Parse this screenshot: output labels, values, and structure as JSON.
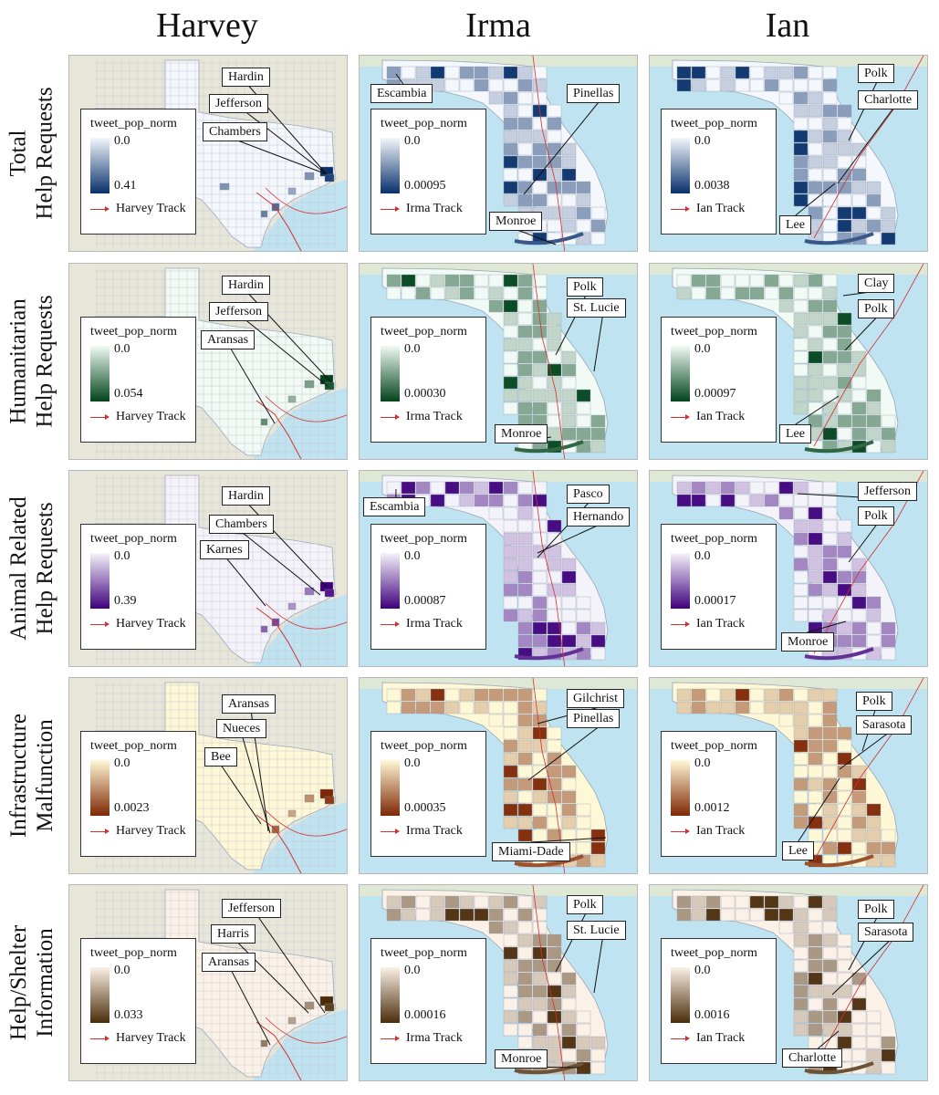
{
  "columns": [
    "Harvey",
    "Irma",
    "Ian"
  ],
  "rows": [
    {
      "line1": "Total",
      "line2": "Help Requests",
      "ramp": [
        "#f4f7fc",
        "#08306b"
      ]
    },
    {
      "line1": "Humanitarian",
      "line2": "Help Requests",
      "ramp": [
        "#f1faf4",
        "#00441b"
      ]
    },
    {
      "line1": "Animal Related",
      "line2": "Help Requests",
      "ramp": [
        "#f5f3fa",
        "#3f007d"
      ]
    },
    {
      "line1": "Infrastructure",
      "line2": "Malfunction",
      "ramp": [
        "#fff8d6",
        "#7f2704"
      ]
    },
    {
      "line1": "Help/Shelter",
      "line2": "Information",
      "ramp": [
        "#fbf1e6",
        "#4a2c0a"
      ]
    }
  ],
  "legend_title": "tweet_pop_norm",
  "legend_min": "0.0",
  "panels": [
    [
      {
        "max": "0.41",
        "track": "Harvey Track",
        "labels": [
          "Hardin",
          "Jefferson",
          "Chambers"
        ]
      },
      {
        "max": "0.00095",
        "track": "Irma Track",
        "labels": [
          "Escambia",
          "Pinellas",
          "Monroe"
        ]
      },
      {
        "max": "0.0038",
        "track": "Ian Track",
        "labels": [
          "Polk",
          "Charlotte",
          "Lee"
        ]
      }
    ],
    [
      {
        "max": "0.054",
        "track": "Harvey Track",
        "labels": [
          "Hardin",
          "Jefferson",
          "Aransas"
        ]
      },
      {
        "max": "0.00030",
        "track": "Irma Track",
        "labels": [
          "Polk",
          "St. Lucie",
          "Monroe"
        ]
      },
      {
        "max": "0.00097",
        "track": "Ian Track",
        "labels": [
          "Clay",
          "Polk",
          "Lee"
        ]
      }
    ],
    [
      {
        "max": "0.39",
        "track": "Harvey Track",
        "labels": [
          "Hardin",
          "Chambers",
          "Karnes"
        ]
      },
      {
        "max": "0.00087",
        "track": "Irma Track",
        "labels": [
          "Escambia",
          "Pasco",
          "Hernando"
        ]
      },
      {
        "max": "0.00017",
        "track": "Ian Track",
        "labels": [
          "Jefferson",
          "Polk",
          "Monroe"
        ]
      }
    ],
    [
      {
        "max": "0.0023",
        "track": "Harvey Track",
        "labels": [
          "Aransas",
          "Nueces",
          "Bee"
        ]
      },
      {
        "max": "0.00035",
        "track": "Irma Track",
        "labels": [
          "Gilchrist",
          "Pinellas",
          "Miami-Dade"
        ]
      },
      {
        "max": "0.0012",
        "track": "Ian Track",
        "labels": [
          "Polk",
          "Sarasota",
          "Lee"
        ]
      }
    ],
    [
      {
        "max": "0.033",
        "track": "Harvey Track",
        "labels": [
          "Jefferson",
          "Harris",
          "Aransas"
        ]
      },
      {
        "max": "0.00016",
        "track": "Irma Track",
        "labels": [
          "Polk",
          "St. Lucie",
          "Monroe"
        ]
      },
      {
        "max": "0.0016",
        "track": "Ian Track",
        "labels": [
          "Polk",
          "Sarasota",
          "Charlotte"
        ]
      }
    ]
  ]
}
